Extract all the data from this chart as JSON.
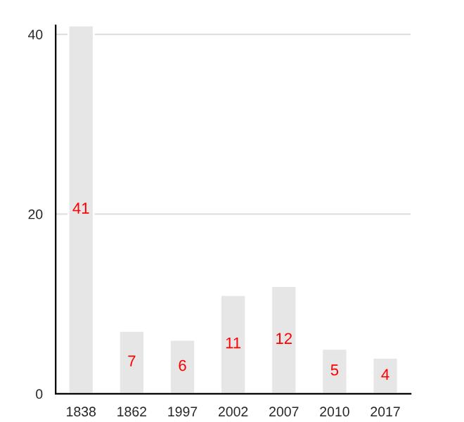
{
  "chart_data": {
    "type": "bar",
    "categories": [
      "1838",
      "1862",
      "1997",
      "2002",
      "2007",
      "2010",
      "2017"
    ],
    "values": [
      41,
      7,
      6,
      11,
      12,
      5,
      4
    ],
    "color": "#e6e6e6",
    "ylim": [
      0,
      41
    ],
    "yticks": [
      0,
      20,
      40
    ],
    "grid": "y",
    "data_labels": true
  }
}
